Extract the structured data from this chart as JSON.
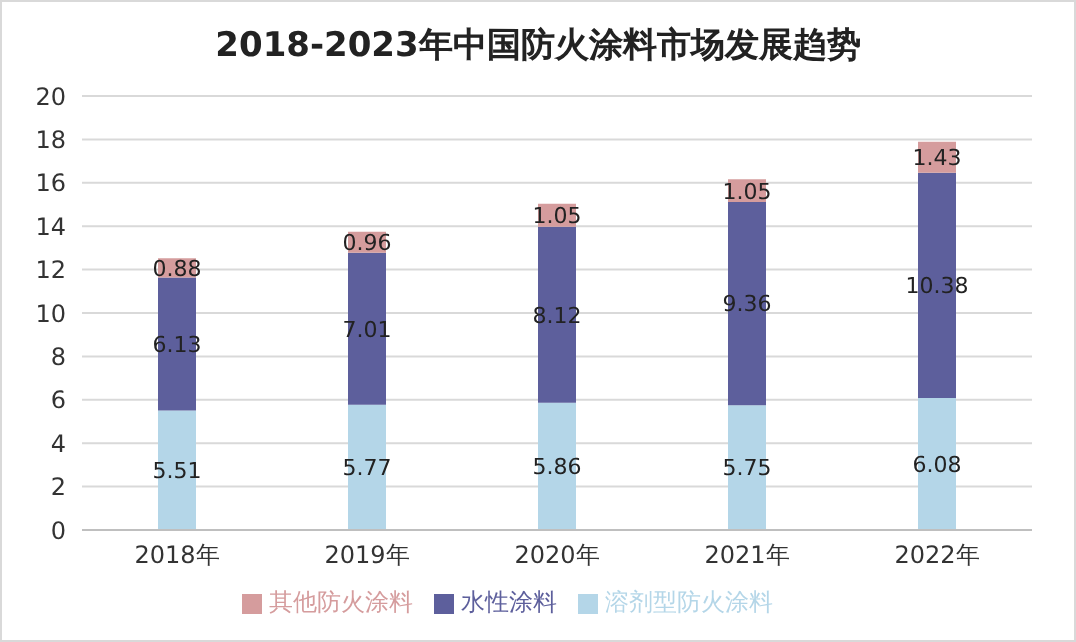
{
  "chart_data": {
    "type": "bar",
    "title": "2018-2023年中国防火涂料市场发展趋势",
    "categories": [
      "2018年",
      "2019年",
      "2020年",
      "2021年",
      "2022年"
    ],
    "stacked": true,
    "series": [
      {
        "name": "溶剂型防火涂料",
        "color": "#b4d6e8",
        "values": [
          5.51,
          5.77,
          5.86,
          5.75,
          6.08
        ]
      },
      {
        "name": "水性涂料",
        "color": "#5d5f9c",
        "values": [
          6.13,
          7.01,
          8.12,
          9.36,
          10.38
        ]
      },
      {
        "name": "其他防火涂料",
        "color": "#d59c9d",
        "values": [
          0.88,
          0.96,
          1.05,
          1.05,
          1.43
        ]
      }
    ],
    "ylim": [
      0,
      20
    ],
    "yticks": [
      0,
      2,
      4,
      6,
      8,
      10,
      12,
      14,
      16,
      18,
      20
    ],
    "grid": "y",
    "legend": "bottom",
    "data_labels": true
  }
}
